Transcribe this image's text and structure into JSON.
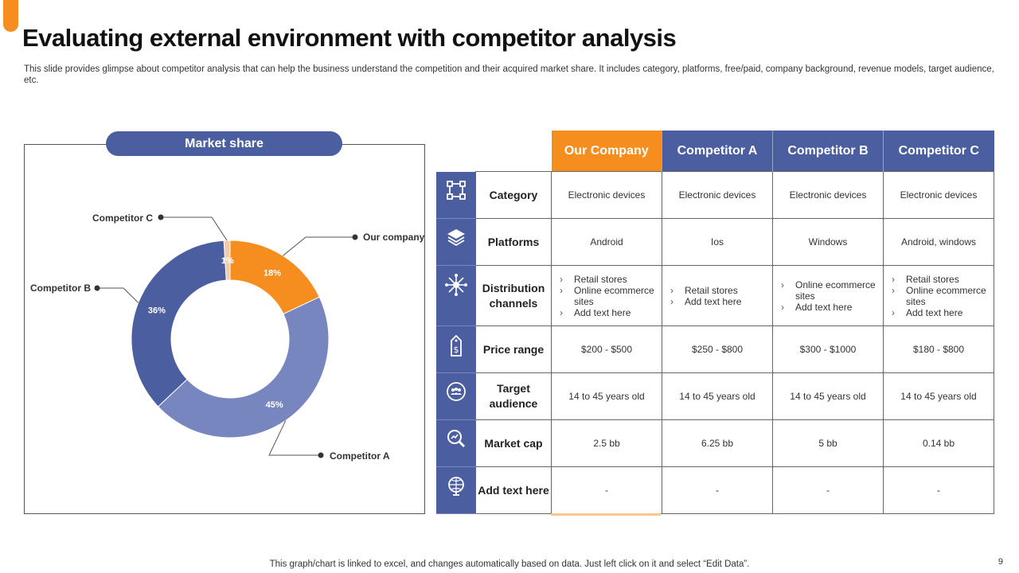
{
  "title": "Evaluating external environment with competitor analysis",
  "subtitle": "This slide provides glimpse about competitor analysis that can help the business understand the competition and their acquired market share. It includes category, platforms, free/paid, company background, revenue models, target audience, etc.",
  "chart_title": "Market share",
  "chart_data": {
    "type": "pie",
    "title": "Market share",
    "categories": [
      "Our company",
      "Competitor A",
      "Competitor B",
      "Competitor C"
    ],
    "values": [
      18,
      45,
      36,
      1
    ],
    "value_labels": [
      "18%",
      "45%",
      "36%",
      "1%"
    ],
    "colors": [
      "#F58E1F",
      "#7886C0",
      "#4B5FA0",
      "#F5CBA7"
    ],
    "legend": "callout labels"
  },
  "table": {
    "headers": [
      "Our Company",
      "Competitor A",
      "Competitor B",
      "Competitor C"
    ],
    "rows": [
      {
        "icon": "network-icon",
        "label": "Category",
        "cells": [
          "Electronic devices",
          "Electronic devices",
          "Electronic devices",
          "Electronic devices"
        ]
      },
      {
        "icon": "layers-icon",
        "label": "Platforms",
        "cells": [
          "Android",
          "Ios",
          "Windows",
          "Android, windows"
        ]
      },
      {
        "icon": "hub-icon",
        "label": "Distribution channels",
        "list_cells": [
          [
            "Retail stores",
            "Online ecommerce sites",
            "Add text here"
          ],
          [
            "Retail stores",
            "Add text here"
          ],
          [
            "Online ecommerce sites",
            "Add text here"
          ],
          [
            "Retail stores",
            "Online ecommerce sites",
            "Add text here"
          ]
        ]
      },
      {
        "icon": "price-tag-icon",
        "label": "Price range",
        "cells": [
          "$200 - $500",
          "$250 - $800",
          "$300 - $1000",
          "$180 - $800"
        ]
      },
      {
        "icon": "audience-icon",
        "label": "Target audience",
        "cells": [
          "14 to 45 years old",
          "14 to 45 years old",
          "14 to 45 years old",
          "14 to 45 years old"
        ]
      },
      {
        "icon": "market-search-icon",
        "label": "Market cap",
        "cells": [
          "2.5 bb",
          "6.25 bb",
          "5 bb",
          "0.14 bb"
        ]
      },
      {
        "icon": "globe-icon",
        "label": "Add text here",
        "cells": [
          "-",
          "-",
          "-",
          "-"
        ]
      }
    ]
  },
  "footer": "This graph/chart is linked to excel,  and changes automatically based on data. Just left click on it and select “Edit Data”.",
  "page_number": "9"
}
